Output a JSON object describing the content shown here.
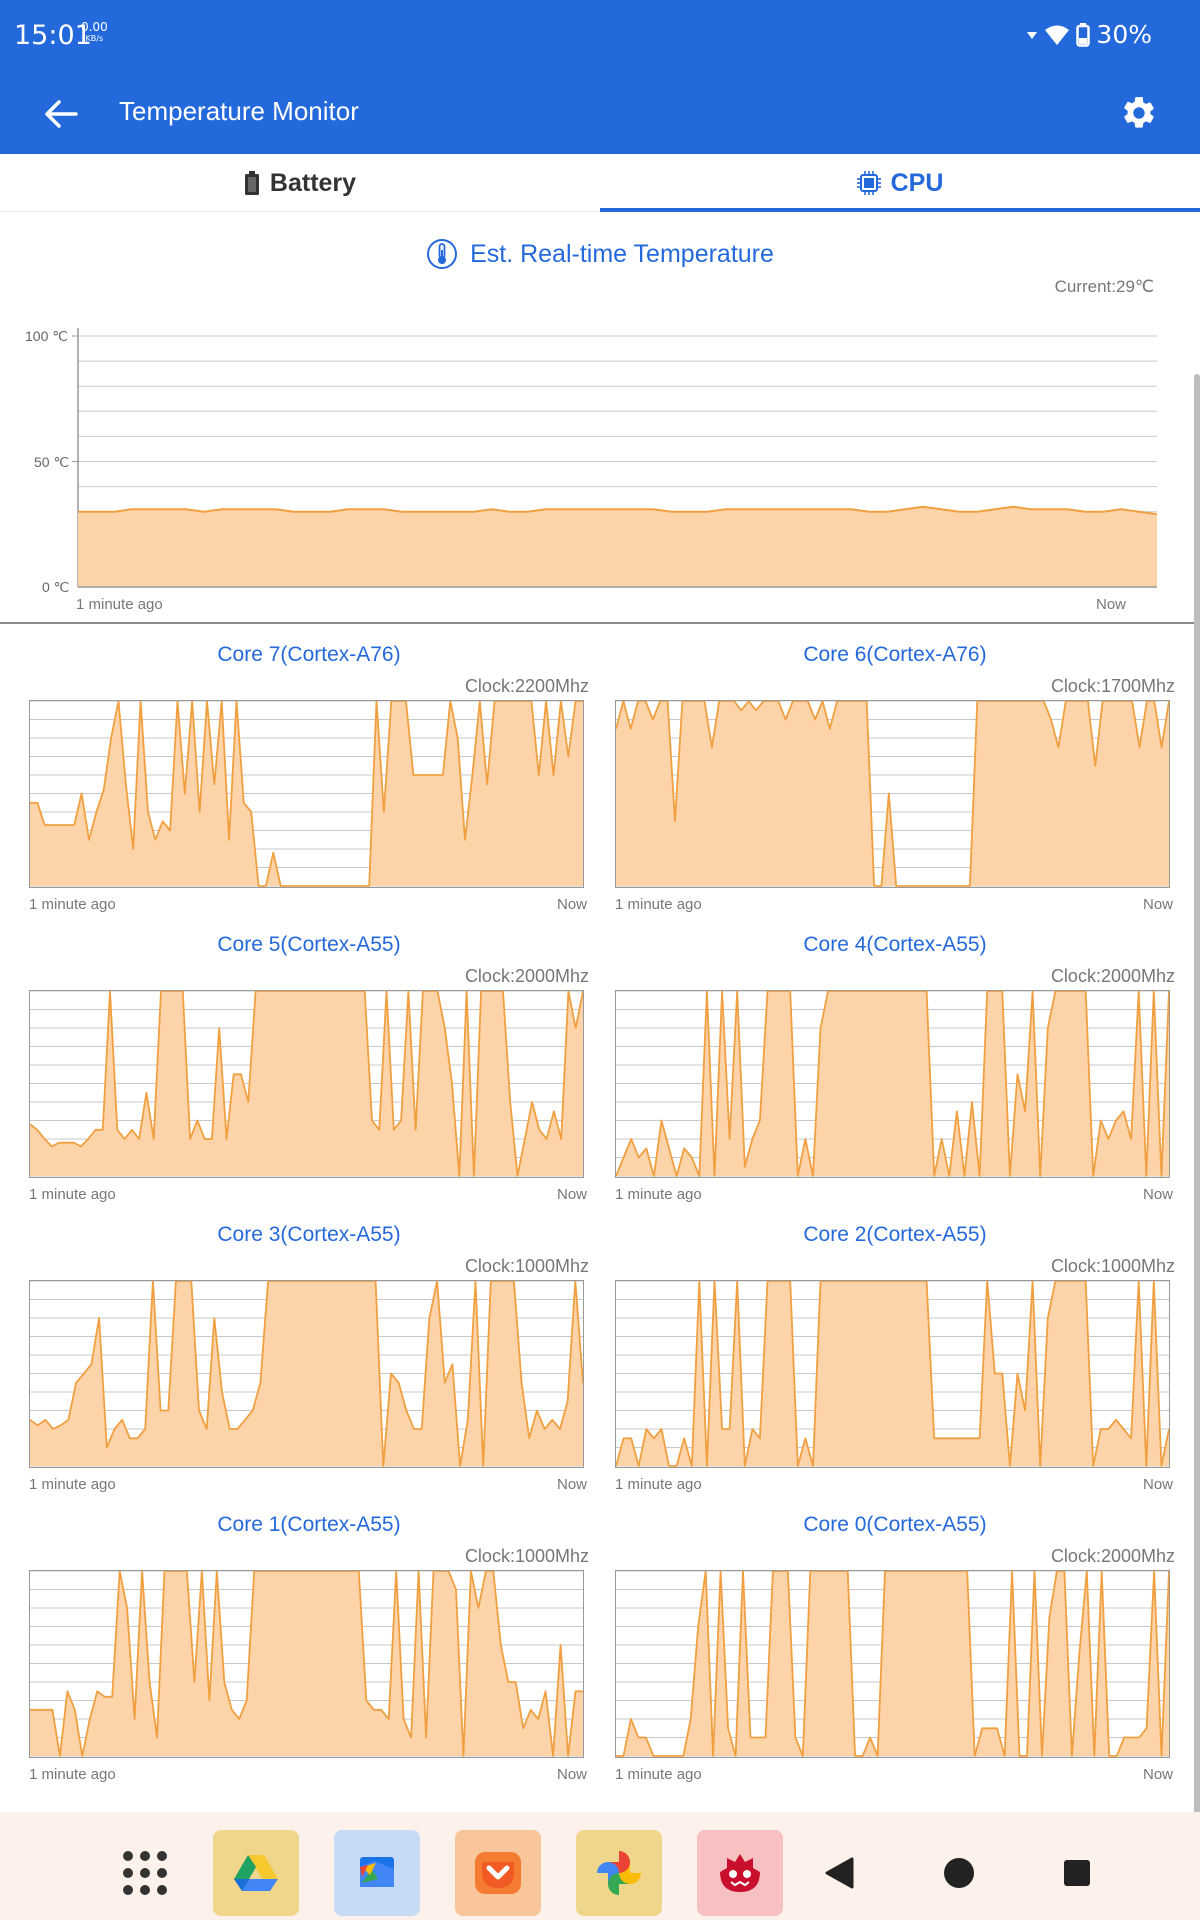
{
  "status_bar": {
    "time": "15:01",
    "net_speed_value": "0.00",
    "net_speed_unit": "KB/s",
    "battery_percent": "30%"
  },
  "app_bar": {
    "title": "Temperature Monitor",
    "back_icon": "arrow-left-icon",
    "settings_icon": "gear-icon"
  },
  "tabs": [
    {
      "label": "Battery",
      "icon": "battery-icon",
      "selected": false
    },
    {
      "label": "CPU",
      "icon": "cpu-chip-icon",
      "selected": true
    }
  ],
  "section": {
    "title": "Est. Real-time Temperature",
    "icon": "thermometer-icon",
    "current": "Current:29℃"
  },
  "chart_data": [
    {
      "type": "area",
      "ylim": [
        0,
        100
      ],
      "y_ticks": [
        "100 ℃",
        "50 ℃",
        "0 ℃"
      ],
      "x_start_label": "1 minute ago",
      "x_end_label": "Now",
      "values": [
        30,
        30,
        30,
        31,
        31,
        31,
        31,
        30,
        31,
        31,
        31,
        31,
        30,
        30,
        30,
        31,
        31,
        31,
        30,
        30,
        30,
        30,
        30,
        31,
        30,
        30,
        31,
        31,
        31,
        31,
        31,
        31,
        31,
        30,
        30,
        30,
        31,
        31,
        31,
        31,
        31,
        31,
        31,
        31,
        30,
        30,
        31,
        32,
        31,
        30,
        30,
        31,
        32,
        31,
        31,
        31,
        30,
        30,
        31,
        30,
        29
      ],
      "color": "#f0a040",
      "fill": "#fdd3aa"
    }
  ],
  "cores": [
    {
      "title": "Core 7(Cortex-A76)",
      "clock": "Clock:2200Mhz",
      "left_label": "1 minute ago",
      "right_label": "Now",
      "values": [
        45,
        45,
        33,
        33,
        33,
        33,
        33,
        50,
        25,
        40,
        52,
        80,
        100,
        55,
        20,
        100,
        40,
        25,
        35,
        30,
        100,
        50,
        100,
        40,
        100,
        55,
        100,
        25,
        100,
        45,
        40,
        0,
        0,
        18,
        0,
        0,
        0,
        0,
        0,
        0,
        0,
        0,
        0,
        0,
        0,
        0,
        0,
        100,
        40,
        100,
        100,
        100,
        60,
        60,
        60,
        60,
        60,
        100,
        80,
        25,
        60,
        100,
        55,
        100,
        100,
        100,
        100,
        100,
        100,
        60,
        100,
        60,
        100,
        70,
        100,
        100
      ],
      "ylim": [
        0,
        100
      ]
    },
    {
      "title": "Core 6(Cortex-A76)",
      "clock": "Clock:1700Mhz",
      "left_label": "1 minute ago",
      "right_label": "Now",
      "values": [
        85,
        100,
        85,
        100,
        100,
        90,
        100,
        100,
        35,
        100,
        100,
        100,
        100,
        75,
        100,
        100,
        100,
        95,
        100,
        95,
        100,
        100,
        100,
        90,
        100,
        100,
        100,
        90,
        100,
        85,
        100,
        100,
        100,
        100,
        100,
        0,
        0,
        50,
        0,
        0,
        0,
        0,
        0,
        0,
        0,
        0,
        0,
        0,
        0,
        100,
        100,
        100,
        100,
        100,
        100,
        100,
        100,
        100,
        100,
        90,
        75,
        100,
        100,
        100,
        100,
        65,
        100,
        100,
        100,
        100,
        100,
        75,
        100,
        100,
        75,
        100
      ],
      "ylim": [
        0,
        100
      ]
    },
    {
      "title": "Core 5(Cortex-A55)",
      "clock": "Clock:2000Mhz",
      "left_label": "1 minute ago",
      "right_label": "Now",
      "values": [
        28,
        25,
        20,
        16,
        18,
        18,
        18,
        16,
        20,
        25,
        25,
        100,
        25,
        20,
        25,
        20,
        45,
        20,
        100,
        100,
        100,
        100,
        20,
        30,
        20,
        20,
        80,
        20,
        55,
        55,
        40,
        100,
        100,
        100,
        100,
        100,
        100,
        100,
        100,
        100,
        100,
        100,
        100,
        100,
        100,
        100,
        100,
        30,
        25,
        100,
        25,
        30,
        100,
        25,
        100,
        100,
        100,
        80,
        50,
        0,
        100,
        0,
        100,
        100,
        100,
        100,
        40,
        0,
        20,
        40,
        25,
        20,
        35,
        20,
        100,
        80,
        100
      ],
      "ylim": [
        0,
        100
      ]
    },
    {
      "title": "Core 4(Cortex-A55)",
      "clock": "Clock:2000Mhz",
      "left_label": "1 minute ago",
      "right_label": "Now",
      "values": [
        0,
        10,
        20,
        10,
        15,
        0,
        30,
        15,
        0,
        15,
        10,
        0,
        100,
        0,
        100,
        20,
        100,
        5,
        20,
        30,
        100,
        100,
        100,
        100,
        0,
        20,
        0,
        80,
        100,
        100,
        100,
        100,
        100,
        100,
        100,
        100,
        100,
        100,
        100,
        100,
        100,
        100,
        0,
        20,
        0,
        35,
        0,
        40,
        0,
        100,
        100,
        100,
        0,
        55,
        35,
        100,
        0,
        80,
        100,
        100,
        100,
        100,
        100,
        0,
        30,
        20,
        30,
        35,
        20,
        100,
        0,
        100,
        0,
        100
      ],
      "ylim": [
        0,
        100
      ]
    },
    {
      "title": "Core 3(Cortex-A55)",
      "clock": "Clock:1000Mhz",
      "left_label": "1 minute ago",
      "right_label": "Now",
      "values": [
        25,
        22,
        25,
        20,
        22,
        25,
        45,
        50,
        55,
        80,
        10,
        20,
        25,
        15,
        15,
        20,
        100,
        30,
        30,
        100,
        100,
        100,
        30,
        20,
        80,
        40,
        20,
        20,
        25,
        30,
        45,
        100,
        100,
        100,
        100,
        100,
        100,
        100,
        100,
        100,
        100,
        100,
        100,
        100,
        100,
        100,
        0,
        50,
        45,
        30,
        20,
        20,
        80,
        100,
        45,
        55,
        0,
        25,
        100,
        0,
        100,
        100,
        100,
        100,
        45,
        15,
        30,
        20,
        25,
        20,
        35,
        100,
        45
      ],
      "ylim": [
        0,
        100
      ]
    },
    {
      "title": "Core 2(Cortex-A55)",
      "clock": "Clock:1000Mhz",
      "left_label": "1 minute ago",
      "right_label": "Now",
      "values": [
        0,
        15,
        15,
        0,
        20,
        15,
        20,
        0,
        0,
        15,
        0,
        100,
        0,
        100,
        20,
        20,
        100,
        0,
        20,
        15,
        100,
        100,
        100,
        100,
        0,
        15,
        0,
        100,
        100,
        100,
        100,
        100,
        100,
        100,
        100,
        100,
        100,
        100,
        100,
        100,
        100,
        100,
        15,
        15,
        15,
        15,
        15,
        15,
        15,
        100,
        50,
        50,
        0,
        50,
        30,
        100,
        0,
        80,
        100,
        100,
        100,
        100,
        100,
        0,
        20,
        20,
        25,
        20,
        15,
        100,
        0,
        100,
        0,
        20
      ],
      "ylim": [
        0,
        100
      ]
    },
    {
      "title": "Core 1(Cortex-A55)",
      "clock": "Clock:1000Mhz",
      "left_label": "1 minute ago",
      "right_label": "Now",
      "values": [
        25,
        25,
        25,
        25,
        0,
        35,
        25,
        0,
        20,
        35,
        32,
        32,
        100,
        80,
        20,
        100,
        40,
        10,
        100,
        100,
        100,
        100,
        40,
        100,
        30,
        100,
        40,
        25,
        20,
        30,
        100,
        100,
        100,
        100,
        100,
        100,
        100,
        100,
        100,
        100,
        100,
        100,
        100,
        100,
        100,
        30,
        25,
        25,
        20,
        100,
        20,
        10,
        100,
        10,
        100,
        100,
        100,
        90,
        0,
        100,
        80,
        100,
        100,
        60,
        40,
        40,
        15,
        25,
        20,
        35,
        0,
        60,
        0,
        35,
        35
      ],
      "ylim": [
        0,
        100
      ]
    },
    {
      "title": "Core 0(Cortex-A55)",
      "clock": "Clock:2000Mhz",
      "left_label": "1 minute ago",
      "right_label": "Now",
      "values": [
        0,
        0,
        20,
        10,
        10,
        0,
        0,
        0,
        0,
        0,
        20,
        70,
        100,
        0,
        100,
        15,
        0,
        100,
        10,
        10,
        10,
        100,
        100,
        100,
        10,
        0,
        100,
        100,
        100,
        100,
        100,
        100,
        0,
        0,
        10,
        0,
        100,
        100,
        100,
        100,
        100,
        100,
        100,
        100,
        100,
        100,
        100,
        100,
        0,
        15,
        15,
        15,
        0,
        100,
        0,
        0,
        100,
        0,
        75,
        100,
        100,
        0,
        55,
        100,
        0,
        100,
        0,
        0,
        10,
        10,
        10,
        15,
        100,
        0,
        100
      ],
      "ylim": [
        0,
        100
      ]
    }
  ],
  "nav_bar": {
    "items": [
      {
        "name": "app-drawer-icon"
      },
      {
        "name": "google-drive-icon"
      },
      {
        "name": "files-icon"
      },
      {
        "name": "pocket-icon"
      },
      {
        "name": "google-photos-icon"
      },
      {
        "name": "antutu-icon"
      },
      {
        "name": "back-triangle-icon"
      },
      {
        "name": "home-circle-icon"
      },
      {
        "name": "recents-square-icon"
      }
    ]
  }
}
